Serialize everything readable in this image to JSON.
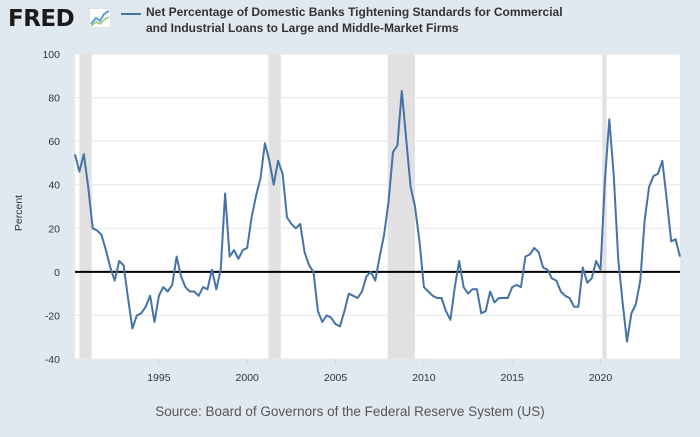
{
  "branding": {
    "logo_text": "FRED",
    "logo_icon": "line-graph-icon"
  },
  "colors": {
    "background": "#e1e9f0",
    "plot_background": "#ffffff",
    "series": "#4572a7",
    "recession": "#e1e1e1",
    "zero_line": "#000000"
  },
  "chart_data": {
    "type": "line",
    "title": "Net Percentage of Domestic Banks Tightening Standards for Commercial and Industrial Loans to Large and Middle-Market Firms",
    "xlabel": "",
    "ylabel": "Percent",
    "xlim": [
      1990.25,
      2024.5
    ],
    "ylim": [
      -40,
      100
    ],
    "grid": true,
    "legend": "top",
    "yticks": [
      -40,
      -20,
      0,
      20,
      40,
      60,
      80,
      100
    ],
    "xticks": [
      1995,
      2000,
      2005,
      2010,
      2015,
      2020
    ],
    "recessions": [
      [
        1990.5,
        1991.2
      ],
      [
        2001.2,
        2001.9
      ],
      [
        2007.95,
        2009.5
      ],
      [
        2020.1,
        2020.35
      ]
    ],
    "series": [
      {
        "name": "Net Percentage of Domestic Banks Tightening Standards for Commercial and Industrial Loans to Large and Middle-Market Firms",
        "x": [
          1990.25,
          1990.5,
          1990.75,
          1991.0,
          1991.25,
          1991.5,
          1991.75,
          1992.0,
          1992.25,
          1992.5,
          1992.75,
          1993.0,
          1993.25,
          1993.5,
          1993.75,
          1994.0,
          1994.25,
          1994.5,
          1994.75,
          1995.0,
          1995.25,
          1995.5,
          1995.75,
          1996.0,
          1996.25,
          1996.5,
          1996.75,
          1997.0,
          1997.25,
          1997.5,
          1997.75,
          1998.0,
          1998.25,
          1998.5,
          1998.75,
          1999.0,
          1999.25,
          1999.5,
          1999.75,
          2000.0,
          2000.25,
          2000.5,
          2000.75,
          2001.0,
          2001.25,
          2001.5,
          2001.75,
          2002.0,
          2002.25,
          2002.5,
          2002.75,
          2003.0,
          2003.25,
          2003.5,
          2003.75,
          2004.0,
          2004.25,
          2004.5,
          2004.75,
          2005.0,
          2005.25,
          2005.5,
          2005.75,
          2006.0,
          2006.25,
          2006.5,
          2006.75,
          2007.0,
          2007.25,
          2007.5,
          2007.75,
          2008.0,
          2008.25,
          2008.5,
          2008.75,
          2009.0,
          2009.25,
          2009.5,
          2009.75,
          2010.0,
          2010.25,
          2010.5,
          2010.75,
          2011.0,
          2011.25,
          2011.5,
          2011.75,
          2012.0,
          2012.25,
          2012.5,
          2012.75,
          2013.0,
          2013.25,
          2013.5,
          2013.75,
          2014.0,
          2014.25,
          2014.5,
          2014.75,
          2015.0,
          2015.25,
          2015.5,
          2015.75,
          2016.0,
          2016.25,
          2016.5,
          2016.75,
          2017.0,
          2017.25,
          2017.5,
          2017.75,
          2018.0,
          2018.25,
          2018.5,
          2018.75,
          2019.0,
          2019.25,
          2019.5,
          2019.75,
          2020.0,
          2020.25,
          2020.5,
          2020.75,
          2021.0,
          2021.25,
          2021.5,
          2021.75,
          2022.0,
          2022.25,
          2022.5,
          2022.75,
          2023.0,
          2023.25,
          2023.5,
          2023.75,
          2024.0,
          2024.25,
          2024.5
        ],
        "values": [
          54,
          46,
          54,
          39,
          20,
          19,
          17,
          10,
          2,
          -4,
          5,
          3,
          -12,
          -26,
          -20,
          -19,
          -16,
          -11,
          -23,
          -11,
          -7,
          -9,
          -6,
          7,
          -2,
          -7,
          -9,
          -9,
          -11,
          -7,
          -8,
          1,
          -8,
          1,
          36,
          7,
          10,
          6,
          10,
          11,
          25,
          35,
          43,
          59,
          51,
          40,
          51,
          45,
          25,
          22,
          20,
          22,
          9,
          3,
          0,
          -18,
          -23,
          -20,
          -21,
          -24,
          -25,
          -18,
          -10,
          -11,
          -12,
          -9,
          -2,
          0,
          -4,
          7,
          17,
          32,
          55,
          58,
          83,
          61,
          39,
          30,
          14,
          -7,
          -9,
          -11,
          -12,
          -12,
          -18,
          -22,
          -7,
          5,
          -7,
          -10,
          -8,
          -8,
          -19,
          -18,
          -9,
          -14,
          -12,
          -12,
          -12,
          -7,
          -6,
          -7,
          7,
          8,
          11,
          9,
          2,
          1,
          -3,
          -4,
          -9,
          -11,
          -12,
          -16,
          -16,
          2,
          -5,
          -3,
          5,
          1,
          42,
          70,
          44,
          6,
          -14,
          -32,
          -19,
          -15,
          -4,
          24,
          39,
          44,
          45,
          51,
          33,
          14,
          15,
          7
        ]
      }
    ]
  },
  "source_text": "Source: Board of Governors of the Federal Reserve System (US)"
}
